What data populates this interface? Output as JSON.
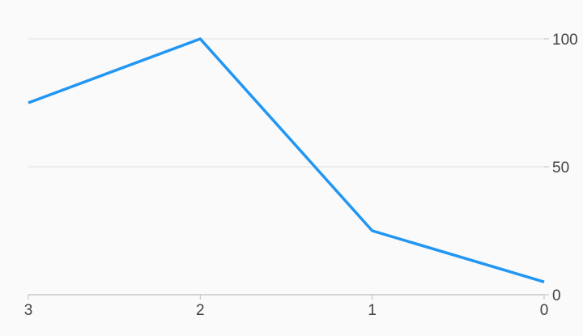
{
  "colors": {
    "background": "#fafafa",
    "line": "#2196f3",
    "grid": "#e0e0e0",
    "axis": "#bdbdbd",
    "tick_text": "#424242"
  },
  "chart_data": {
    "type": "line",
    "x_axis": {
      "ticks": [
        3,
        2,
        1,
        0
      ],
      "range": [
        3,
        0
      ],
      "reversed": true,
      "position": "bottom"
    },
    "y_axis": {
      "ticks": [
        0,
        50,
        100
      ],
      "range": [
        0,
        100
      ],
      "position": "right"
    },
    "grid": {
      "horizontal": true,
      "vertical": false
    },
    "series": [
      {
        "points": [
          {
            "x": 3,
            "y": 75
          },
          {
            "x": 2,
            "y": 100
          },
          {
            "x": 1,
            "y": 25
          },
          {
            "x": 0,
            "y": 5
          }
        ]
      }
    ]
  }
}
